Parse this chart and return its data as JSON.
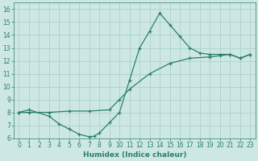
{
  "xlabel": "Humidex (Indice chaleur)",
  "xlim": [
    -0.5,
    23.5
  ],
  "ylim": [
    6,
    16.5
  ],
  "xticks": [
    0,
    1,
    2,
    3,
    4,
    5,
    6,
    7,
    8,
    9,
    10,
    11,
    12,
    13,
    14,
    15,
    16,
    17,
    18,
    19,
    20,
    21,
    22,
    23
  ],
  "yticks": [
    6,
    7,
    8,
    9,
    10,
    11,
    12,
    13,
    14,
    15,
    16
  ],
  "line_color": "#2d7d6e",
  "bg_color": "#cde8e4",
  "grid_color": "#b0d4cf",
  "line1_x": [
    0,
    1,
    3,
    4,
    5,
    6,
    7,
    7.5,
    8,
    9,
    10,
    11,
    12,
    13,
    14,
    15,
    16,
    17,
    18,
    19,
    20,
    21,
    22,
    23
  ],
  "line1_y": [
    8.0,
    8.2,
    7.7,
    7.1,
    6.7,
    6.3,
    6.1,
    6.15,
    6.4,
    7.2,
    8.0,
    10.5,
    13.0,
    14.3,
    15.7,
    14.8,
    13.9,
    13.0,
    12.6,
    12.5,
    12.5,
    12.5,
    12.2,
    12.5
  ],
  "line2_x": [
    0,
    1,
    3,
    5,
    7,
    9,
    10,
    11,
    13,
    15,
    17,
    19,
    20,
    21,
    22,
    23
  ],
  "line2_y": [
    8.0,
    8.0,
    8.0,
    8.1,
    8.1,
    8.2,
    9.0,
    9.8,
    11.0,
    11.8,
    12.2,
    12.3,
    12.4,
    12.5,
    12.2,
    12.5
  ],
  "tick_fontsize": 5.5,
  "xlabel_fontsize": 6.5
}
